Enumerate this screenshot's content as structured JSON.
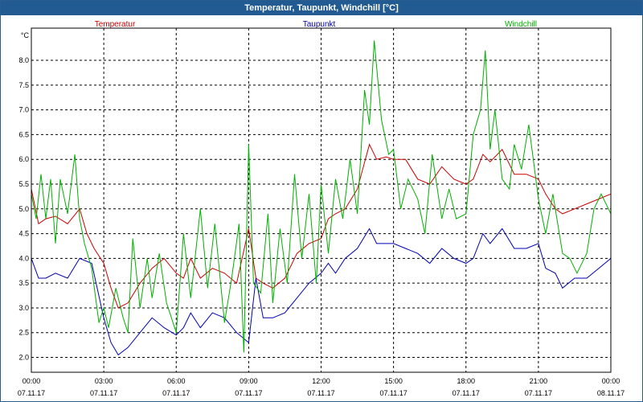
{
  "window": {
    "title": "Temperatur, Taupunkt, Windchill [°C]"
  },
  "chart_data": {
    "type": "line",
    "title": "Temperatur, Taupunkt, Windchill [°C]",
    "ylabel": "°C",
    "ylim": [
      1.7,
      8.65
    ],
    "yticks": [
      2.0,
      2.5,
      3.0,
      3.5,
      4.0,
      4.5,
      5.0,
      5.5,
      6.0,
      6.5,
      7.0,
      7.5,
      8.0
    ],
    "ytick_labels": [
      "2.0",
      "2.5",
      "3.0",
      "3.5",
      "4.0",
      "4.5",
      "5.0",
      "5.5",
      "6.0",
      "6.5",
      "7.0",
      "7.5",
      "8.0"
    ],
    "xlim": [
      0,
      24
    ],
    "xticks": [
      0,
      3,
      6,
      9,
      12,
      15,
      18,
      21,
      24
    ],
    "xtick_times": [
      "00:00",
      "03:00",
      "06:00",
      "09:00",
      "12:00",
      "15:00",
      "18:00",
      "21:00",
      "00:00"
    ],
    "xtick_dates": [
      "07.11.17",
      "07.11.17",
      "07.11.17",
      "07.11.17",
      "07.11.17",
      "07.11.17",
      "07.11.17",
      "07.11.17",
      "08.11.17"
    ],
    "grid": true,
    "legend_position": "top",
    "series": [
      {
        "name": "Temperatur",
        "color": "#cc0000",
        "x": [
          0,
          0.3,
          0.6,
          1,
          1.5,
          2,
          2.3,
          2.6,
          3,
          3.3,
          3.6,
          4,
          4.5,
          5,
          5.5,
          6,
          6.3,
          6.6,
          7,
          7.5,
          8,
          8.5,
          9,
          9.3,
          9.6,
          10,
          10.5,
          11,
          11.5,
          12,
          12.3,
          12.6,
          13,
          13.5,
          14,
          14.3,
          14.7,
          15,
          15.5,
          16,
          16.5,
          17,
          17.5,
          18,
          18.3,
          18.7,
          19,
          19.5,
          20,
          20.5,
          21,
          21.3,
          21.7,
          22,
          22.5,
          23,
          23.5,
          24
        ],
        "y": [
          5.4,
          4.7,
          4.8,
          4.85,
          4.7,
          5.0,
          4.5,
          4.2,
          3.9,
          3.4,
          3.0,
          3.1,
          3.5,
          3.8,
          4.0,
          3.7,
          3.6,
          4.0,
          3.6,
          3.8,
          3.7,
          3.5,
          4.6,
          3.6,
          3.5,
          3.4,
          3.6,
          4.1,
          4.3,
          4.4,
          4.8,
          4.9,
          5.0,
          5.4,
          6.3,
          6.0,
          6.05,
          6.0,
          6.0,
          5.6,
          5.5,
          5.85,
          5.6,
          5.5,
          5.6,
          6.1,
          5.95,
          6.2,
          5.7,
          5.7,
          5.6,
          5.3,
          5.0,
          4.9,
          5.0,
          5.1,
          5.2,
          5.3
        ]
      },
      {
        "name": "Taupunkt",
        "color": "#0000b0",
        "x": [
          0,
          0.3,
          0.6,
          1,
          1.5,
          2,
          2.5,
          3,
          3.3,
          3.6,
          4,
          4.5,
          5,
          5.5,
          6,
          6.3,
          6.6,
          7,
          7.5,
          8,
          8.5,
          9,
          9.3,
          9.6,
          10,
          10.5,
          11,
          11.5,
          12,
          12.3,
          12.6,
          13,
          13.5,
          14,
          14.3,
          14.7,
          15,
          15.5,
          16,
          16.5,
          17,
          17.5,
          18,
          18.3,
          18.7,
          19,
          19.5,
          20,
          20.5,
          21,
          21.3,
          21.7,
          22,
          22.5,
          23,
          23.5,
          24
        ],
        "y": [
          4.0,
          3.6,
          3.6,
          3.7,
          3.6,
          4.0,
          3.9,
          2.8,
          2.3,
          2.05,
          2.2,
          2.5,
          2.8,
          2.6,
          2.45,
          2.6,
          2.9,
          2.6,
          2.9,
          2.8,
          2.5,
          2.3,
          3.6,
          2.8,
          2.8,
          2.9,
          3.2,
          3.5,
          3.7,
          3.9,
          3.7,
          4.0,
          4.2,
          4.6,
          4.3,
          4.3,
          4.3,
          4.2,
          4.1,
          3.9,
          4.2,
          4.0,
          3.9,
          4.0,
          4.5,
          4.3,
          4.6,
          4.2,
          4.2,
          4.3,
          3.8,
          3.7,
          3.4,
          3.6,
          3.6,
          3.8,
          4.0
        ]
      },
      {
        "name": "Windchill",
        "color": "#00b000",
        "x": [
          0,
          0.2,
          0.4,
          0.6,
          0.8,
          1.0,
          1.2,
          1.5,
          1.8,
          2.0,
          2.2,
          2.5,
          2.8,
          3.0,
          3.2,
          3.5,
          3.8,
          4.0,
          4.2,
          4.5,
          4.8,
          5.0,
          5.3,
          5.6,
          6.0,
          6.3,
          6.6,
          7.0,
          7.3,
          7.6,
          8.0,
          8.3,
          8.6,
          8.8,
          9.0,
          9.2,
          9.5,
          9.8,
          10.0,
          10.3,
          10.6,
          10.9,
          11.2,
          11.5,
          11.8,
          12.0,
          12.3,
          12.6,
          12.9,
          13.2,
          13.5,
          13.8,
          14.0,
          14.2,
          14.5,
          14.8,
          15.0,
          15.3,
          15.6,
          16.0,
          16.3,
          16.6,
          17.0,
          17.3,
          17.6,
          18.0,
          18.3,
          18.6,
          18.8,
          19.0,
          19.2,
          19.5,
          19.8,
          20.0,
          20.3,
          20.6,
          21.0,
          21.3,
          21.6,
          22.0,
          22.3,
          22.6,
          23.0,
          23.3,
          23.6,
          24.0
        ],
        "y": [
          5.3,
          4.8,
          5.7,
          4.8,
          5.6,
          4.3,
          5.6,
          4.9,
          6.1,
          4.8,
          4.3,
          3.8,
          2.7,
          3.0,
          2.6,
          3.4,
          2.8,
          2.5,
          4.4,
          3.0,
          4.0,
          3.2,
          4.1,
          3.1,
          2.5,
          4.5,
          3.2,
          5.0,
          3.4,
          4.7,
          2.7,
          3.6,
          4.7,
          2.1,
          6.3,
          3.5,
          3.3,
          4.9,
          3.1,
          4.6,
          3.5,
          5.7,
          4.0,
          5.3,
          3.5,
          5.5,
          4.1,
          5.6,
          4.8,
          6.0,
          4.9,
          7.4,
          6.7,
          8.4,
          6.8,
          6.1,
          6.2,
          5.0,
          5.6,
          5.2,
          4.5,
          6.1,
          4.8,
          5.4,
          4.8,
          4.9,
          6.5,
          7.0,
          8.2,
          6.2,
          7.0,
          5.6,
          5.4,
          6.3,
          5.8,
          6.7,
          5.2,
          4.5,
          5.3,
          4.1,
          4.0,
          3.7,
          4.1,
          5.0,
          5.3,
          4.9
        ]
      }
    ]
  }
}
